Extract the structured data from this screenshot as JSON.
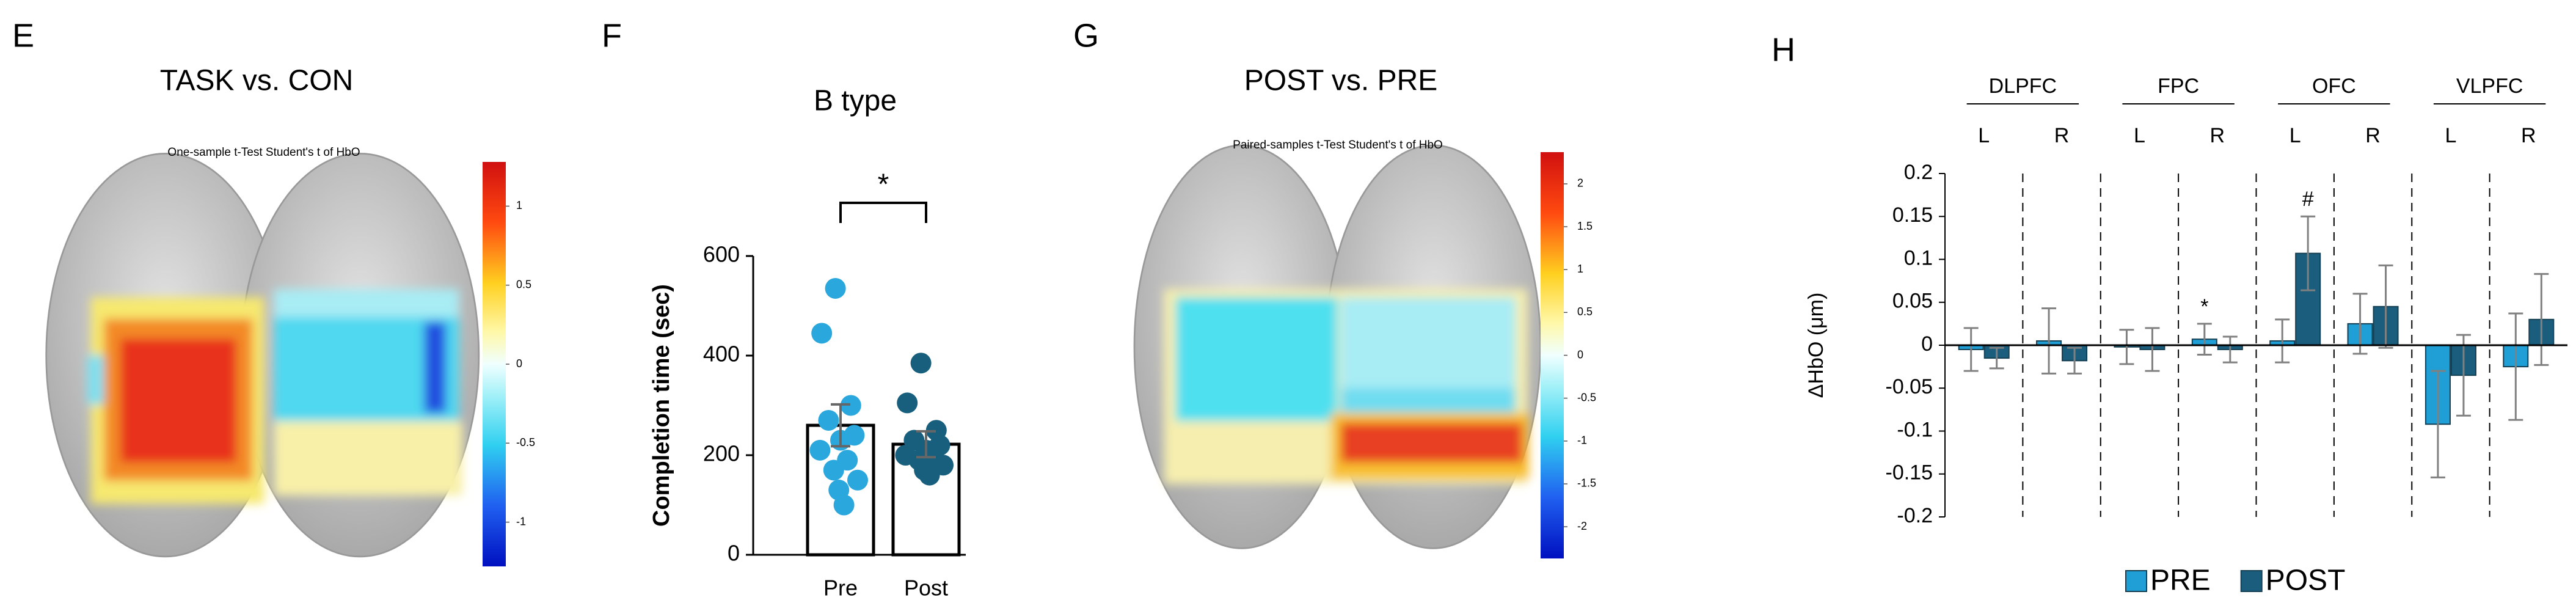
{
  "chart_data": [
    {
      "type": "heatmap",
      "panel": "E",
      "title": "TASK vs. CON",
      "subtitle": "One-sample t-Test Student's t of HbO",
      "clim": [
        -1.28,
        1.28
      ],
      "cticks": [
        1,
        0.5,
        0,
        -0.5,
        -1
      ]
    },
    {
      "type": "bar",
      "panel": "F",
      "title": "B type",
      "ylabel": "Completion time (sec)",
      "categories": [
        "Pre",
        "Post"
      ],
      "values": [
        260,
        222
      ],
      "errors": [
        42,
        26
      ],
      "color": "#ffffff",
      "points": [
        [
          535,
          445,
          300,
          270,
          240,
          230,
          210,
          190,
          170,
          150,
          130,
          100
        ],
        [
          385,
          305,
          250,
          230,
          220,
          210,
          200,
          195,
          190,
          180,
          170,
          160
        ]
      ],
      "point_colors": [
        "#2aa7dd",
        "#185f7d"
      ],
      "annotation": "*",
      "ylim": [
        0,
        600
      ],
      "yticks": [
        0,
        200,
        400,
        600
      ]
    },
    {
      "type": "heatmap",
      "panel": "G",
      "title": "POST vs. PRE",
      "subtitle": "Paired-samples t-Test Student's t of HbO",
      "clim": [
        -2.37,
        2.37
      ],
      "cticks": [
        2,
        1.5,
        1,
        0.5,
        0,
        -0.5,
        -1,
        -1.5,
        -2
      ]
    },
    {
      "type": "grouped_bar",
      "panel": "H",
      "ylabel": "ΔHbO (μm)",
      "groups": [
        "DLPFC",
        "FPC",
        "OFC",
        "VLPFC"
      ],
      "categories": [
        "L",
        "R",
        "L",
        "R",
        "L",
        "R",
        "L",
        "R"
      ],
      "series": [
        {
          "name": "PRE",
          "color": "#1f9fd6",
          "values": [
            -0.005,
            0.005,
            -0.002,
            0.007,
            0.005,
            0.025,
            -0.092,
            -0.025
          ],
          "errors": [
            0.025,
            0.038,
            0.02,
            0.018,
            0.025,
            0.035,
            0.062,
            0.062
          ],
          "annotations": [
            null,
            null,
            null,
            "*",
            null,
            null,
            null,
            null
          ]
        },
        {
          "name": "POST",
          "color": "#1a5d7c",
          "values": [
            -0.015,
            -0.018,
            -0.005,
            -0.005,
            0.107,
            0.045,
            -0.035,
            0.03
          ],
          "errors": [
            0.012,
            0.015,
            0.025,
            0.015,
            0.043,
            0.048,
            0.047,
            0.053
          ],
          "annotations": [
            null,
            null,
            null,
            null,
            "#",
            null,
            null,
            null
          ]
        }
      ],
      "ylim": [
        -0.2,
        0.2
      ],
      "yticks": [
        0.2,
        0.15,
        0.1,
        0.05,
        0,
        -0.05,
        -0.1,
        -0.15,
        -0.2
      ],
      "legend": "bottom"
    }
  ]
}
